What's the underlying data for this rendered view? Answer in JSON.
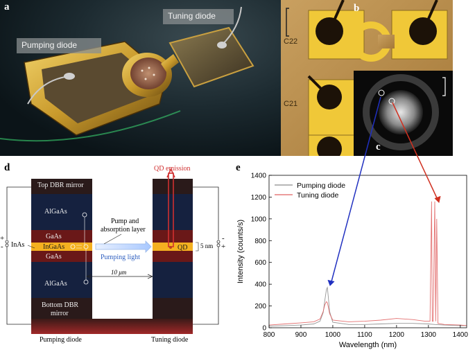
{
  "panels": {
    "a": {
      "letter": "a",
      "pumping_label": "Pumping diode",
      "tuning_label": "Tuning diode"
    },
    "b": {
      "letter": "b",
      "c22": "C22",
      "c21": "C21"
    },
    "c": {
      "letter": "c"
    },
    "d": {
      "letter": "d",
      "qd_emission": "QD emission",
      "top_dbr": "Top DBR mirror",
      "algaas_top": "AlGaAs",
      "gaas_top": "GaAs",
      "ingaas": "InGaAs",
      "gaas_bottom": "GaAs",
      "algaas_bottom": "AlGaAs",
      "bottom_dbr_line1": "Bottom DBR",
      "bottom_dbr_line2": "mirror",
      "inas": "InAs",
      "pump_line1": "Pump and",
      "pump_line2": "absorption layer",
      "pumping_light": "Pumping light",
      "qd": "QD",
      "five_nm": "5 nm",
      "ten_um": "10 μm",
      "pumping_diode": "Pumping diode",
      "tuning_diode": "Tuning diode",
      "plus": "+",
      "minus": "-"
    },
    "e": {
      "letter": "e"
    }
  },
  "colors": {
    "pumping": "#8a8a8a",
    "tuning": "#e06060",
    "blue_arrow": "#2030c0",
    "red_arrow": "#d03020"
  },
  "chart_data": {
    "type": "line",
    "xlabel": "Wavelength (nm)",
    "ylabel": "Intensity (counts/s)",
    "xlim": [
      800,
      1420
    ],
    "ylim": [
      0,
      1400
    ],
    "xticks": [
      800,
      900,
      1000,
      1100,
      1200,
      1300,
      1400
    ],
    "yticks": [
      0,
      200,
      400,
      600,
      800,
      1000,
      1200,
      1400
    ],
    "legend_position": "top-left",
    "series": [
      {
        "name": "Pumping diode",
        "color": "#8a8a8a",
        "x": [
          800,
          850,
          900,
          940,
          960,
          970,
          975,
          980,
          983,
          986,
          990,
          1000,
          1050,
          1100,
          1150,
          1200,
          1250,
          1300,
          1320,
          1350,
          1400,
          1420
        ],
        "y": [
          15,
          20,
          25,
          35,
          60,
          140,
          250,
          350,
          370,
          280,
          150,
          50,
          30,
          30,
          35,
          40,
          40,
          35,
          30,
          25,
          20,
          20
        ]
      },
      {
        "name": "Tuning diode",
        "color": "#e06060",
        "x": [
          800,
          850,
          900,
          940,
          960,
          970,
          975,
          980,
          983,
          986,
          990,
          1000,
          1050,
          1100,
          1150,
          1200,
          1250,
          1290,
          1305,
          1310,
          1312,
          1315,
          1320,
          1323,
          1326,
          1330,
          1350,
          1400,
          1420
        ],
        "y": [
          25,
          35,
          45,
          55,
          80,
          150,
          210,
          240,
          230,
          190,
          130,
          70,
          55,
          60,
          70,
          85,
          75,
          60,
          60,
          1160,
          60,
          60,
          1160,
          60,
          1000,
          40,
          30,
          25,
          20
        ]
      }
    ]
  }
}
